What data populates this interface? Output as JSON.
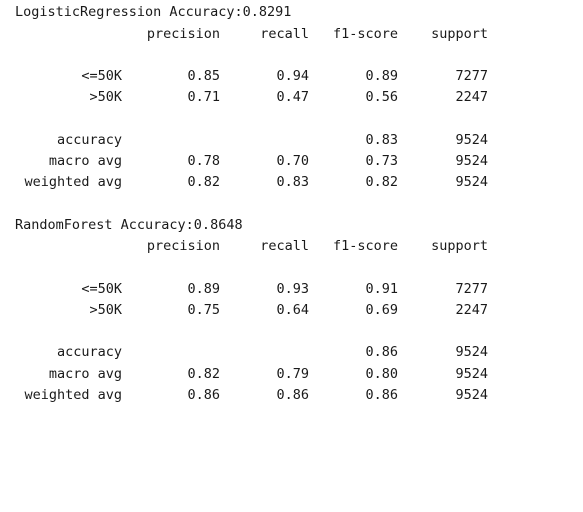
{
  "reports": [
    {
      "title": "LogisticRegression Accuracy:0.8291",
      "headers": [
        "precision",
        "recall",
        "f1-score",
        "support"
      ],
      "classes": [
        {
          "label": "<=50K",
          "precision": "0.85",
          "recall": "0.94",
          "f1": "0.89",
          "support": "7277"
        },
        {
          "label": ">50K",
          "precision": "0.71",
          "recall": "0.47",
          "f1": "0.56",
          "support": "2247"
        }
      ],
      "summary": [
        {
          "label": "accuracy",
          "precision": "",
          "recall": "",
          "f1": "0.83",
          "support": "9524"
        },
        {
          "label": "macro avg",
          "precision": "0.78",
          "recall": "0.70",
          "f1": "0.73",
          "support": "9524"
        },
        {
          "label": "weighted avg",
          "precision": "0.82",
          "recall": "0.83",
          "f1": "0.82",
          "support": "9524"
        }
      ]
    },
    {
      "title": "RandomForest Accuracy:0.8648",
      "headers": [
        "precision",
        "recall",
        "f1-score",
        "support"
      ],
      "classes": [
        {
          "label": "<=50K",
          "precision": "0.89",
          "recall": "0.93",
          "f1": "0.91",
          "support": "7277"
        },
        {
          "label": ">50K",
          "precision": "0.75",
          "recall": "0.64",
          "f1": "0.69",
          "support": "2247"
        }
      ],
      "summary": [
        {
          "label": "accuracy",
          "precision": "",
          "recall": "",
          "f1": "0.86",
          "support": "9524"
        },
        {
          "label": "macro avg",
          "precision": "0.82",
          "recall": "0.79",
          "f1": "0.80",
          "support": "9524"
        },
        {
          "label": "weighted avg",
          "precision": "0.86",
          "recall": "0.86",
          "f1": "0.86",
          "support": "9524"
        }
      ]
    }
  ]
}
